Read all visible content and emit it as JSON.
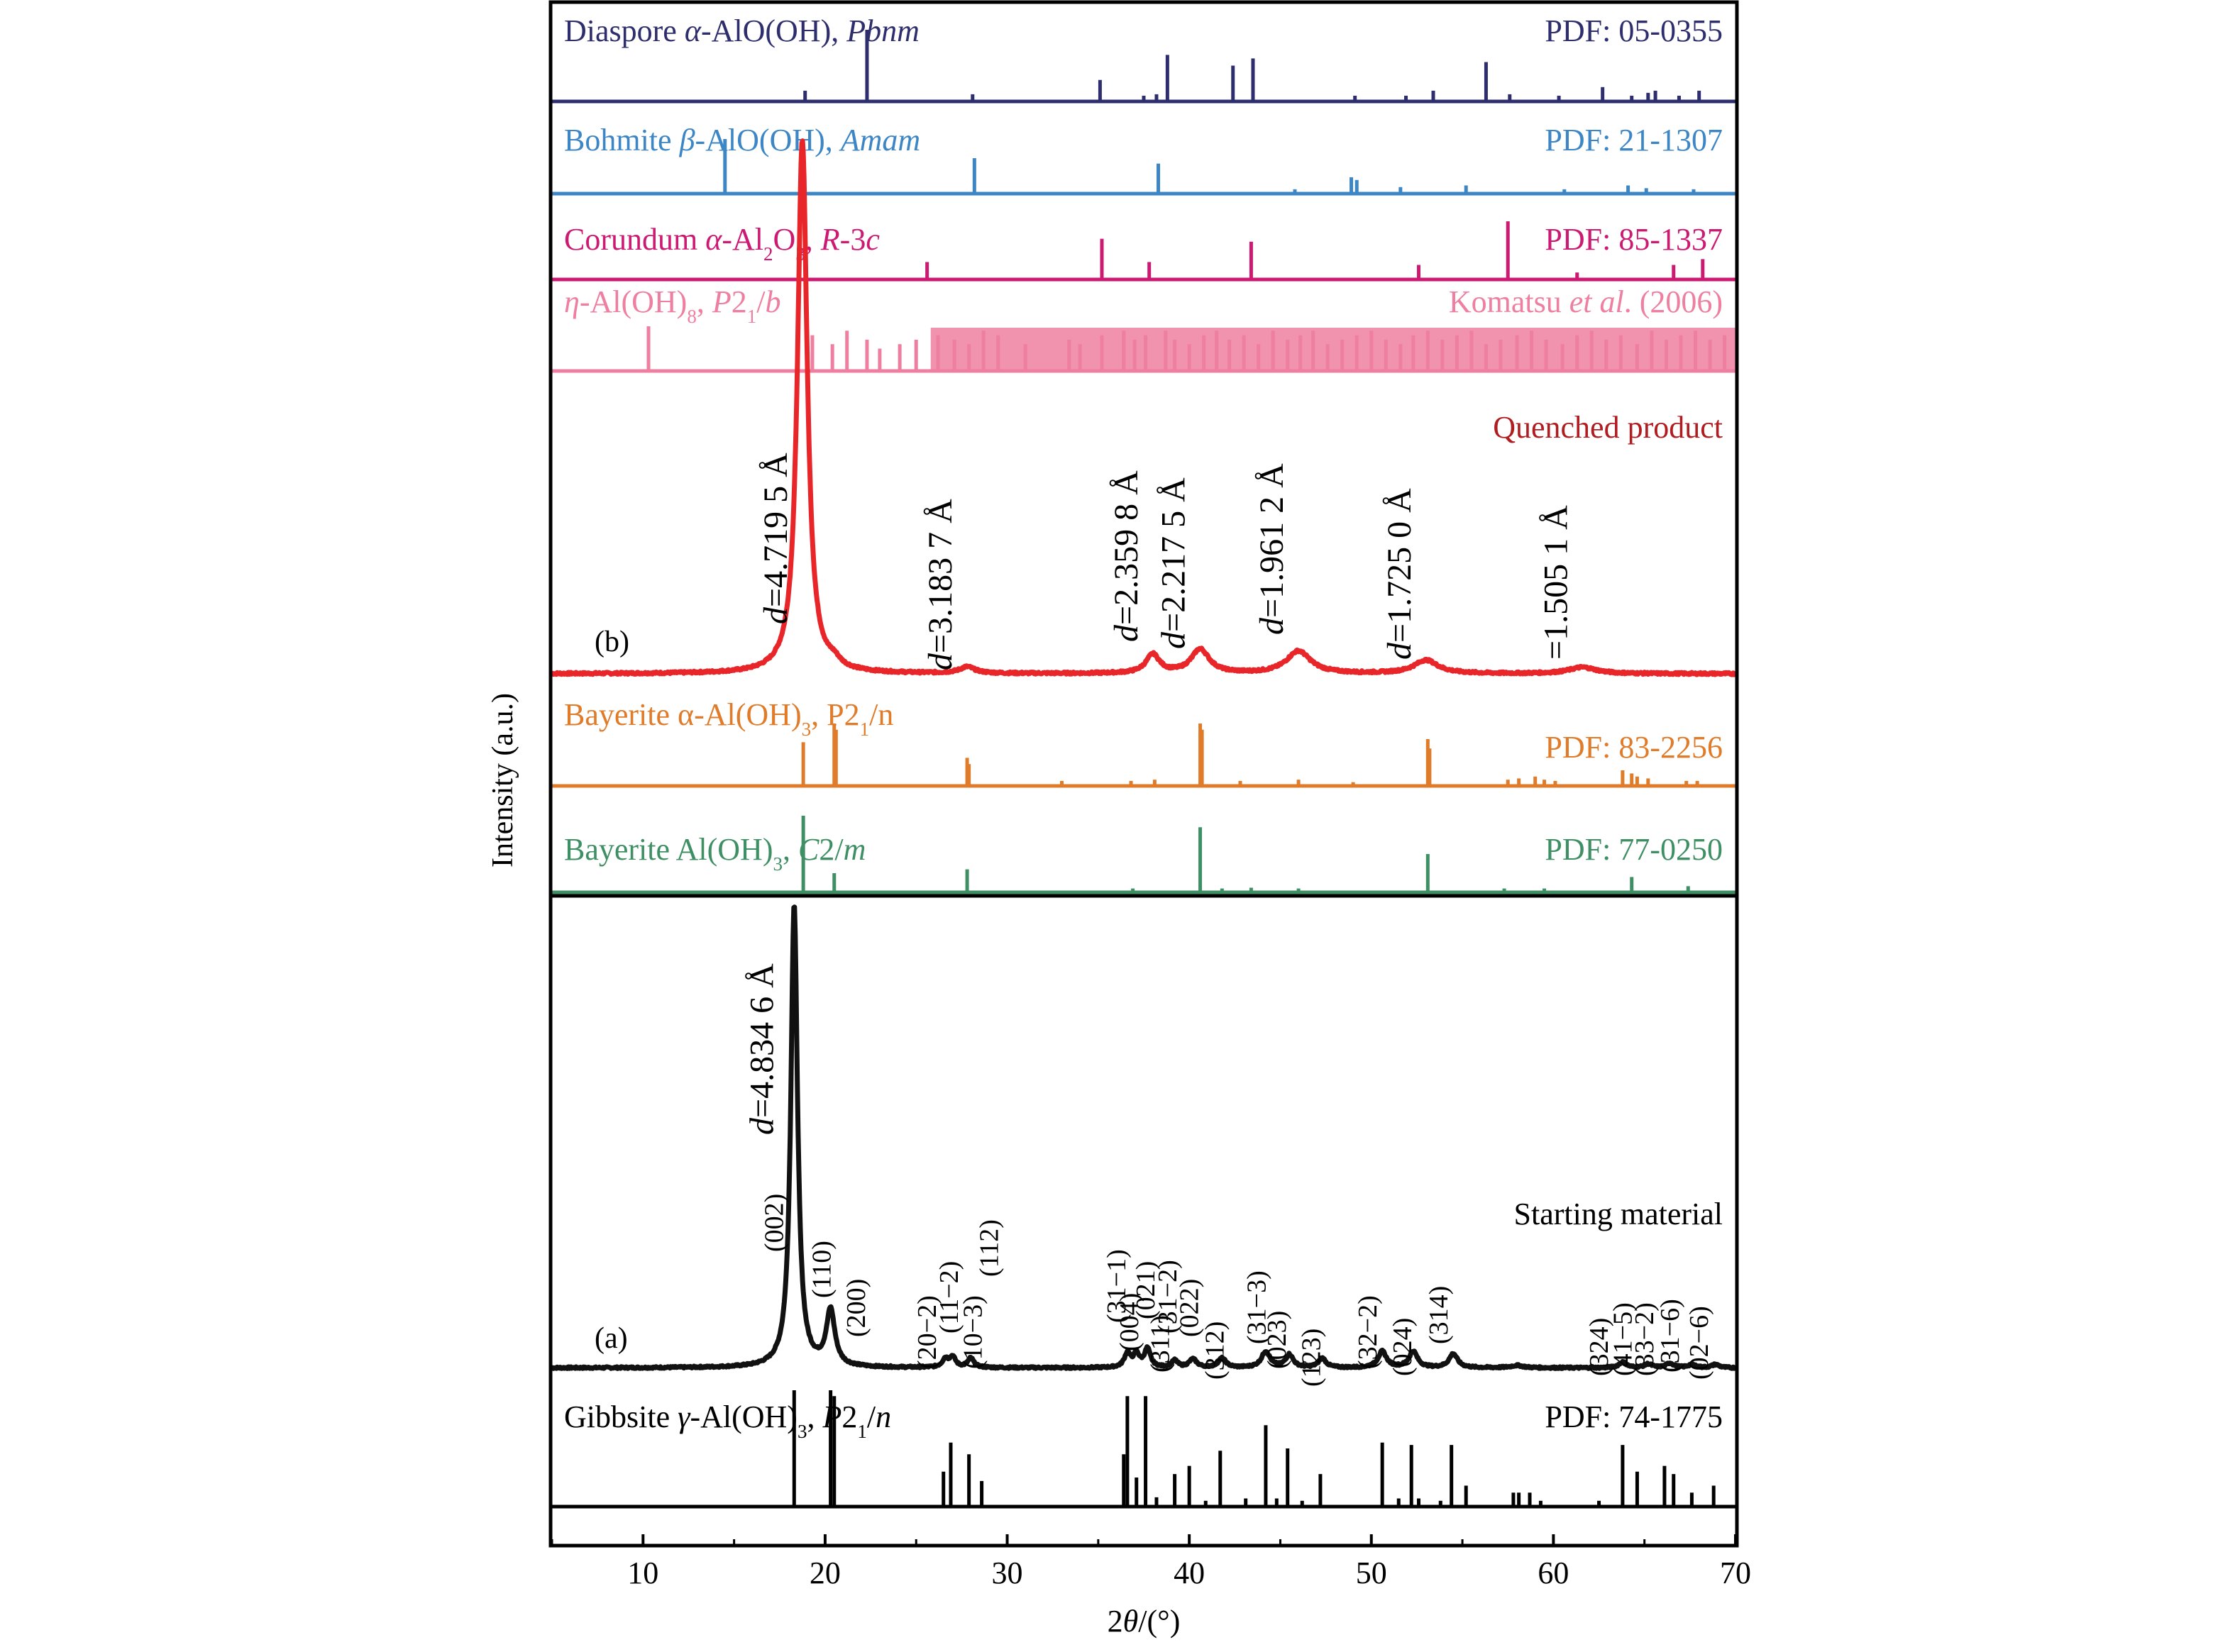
{
  "chart_data": {
    "type": "bar",
    "title": "",
    "xlabel": "2θ/(°)",
    "xlabel_parts": [
      "2",
      "θ",
      "/(°)"
    ],
    "ylabel": "Intensity (a.u.)",
    "xlim": [
      5,
      70
    ],
    "xticks": [
      10,
      20,
      30,
      40,
      50,
      60,
      70
    ],
    "x_tick_labels": [
      "10",
      "20",
      "30",
      "40",
      "50",
      "60",
      "70"
    ],
    "grid": false,
    "reference_patterns": [
      {
        "key": "diaspore",
        "label_parts": [
          [
            "Diaspore ",
            false
          ],
          [
            "α",
            true
          ],
          [
            "-AlO(OH), ",
            false
          ],
          [
            "Pbnm",
            true
          ]
        ],
        "pdf": "PDF: 05-0355",
        "color": "#2e2e6e",
        "x": [
          18.9,
          22.3,
          28.1,
          35.1,
          37.5,
          38.2,
          38.8,
          42.4,
          43.5,
          49.1,
          51.9,
          53.4,
          56.3,
          57.6,
          60.3,
          62.7,
          64.3,
          65.2,
          65.6,
          66.9,
          68.0
        ],
        "h": [
          0.15,
          1.0,
          0.1,
          0.3,
          0.08,
          0.1,
          0.65,
          0.5,
          0.6,
          0.08,
          0.08,
          0.15,
          0.55,
          0.1,
          0.08,
          0.2,
          0.08,
          0.12,
          0.15,
          0.08,
          0.15
        ]
      },
      {
        "key": "bohmite",
        "label_parts": [
          [
            "Bohmite ",
            false
          ],
          [
            "β",
            true
          ],
          [
            "-AlO(OH), ",
            false
          ],
          [
            "Amam",
            true
          ]
        ],
        "pdf": "PDF: 21-1307",
        "color": "#3d86c6",
        "x": [
          14.5,
          28.2,
          38.3,
          45.8,
          48.9,
          49.2,
          51.6,
          55.2,
          60.6,
          64.1,
          65.1,
          67.7
        ],
        "h": [
          1.0,
          0.65,
          0.55,
          0.08,
          0.3,
          0.25,
          0.12,
          0.15,
          0.08,
          0.15,
          0.1,
          0.08
        ]
      },
      {
        "key": "corundum",
        "label_parts": [
          [
            "Corundum ",
            false
          ],
          [
            "α",
            true
          ],
          [
            "-Al",
            false
          ],
          [
            "2",
            "sub"
          ],
          [
            "O",
            false
          ],
          [
            "3",
            "sub"
          ],
          [
            ", ",
            false
          ],
          [
            "R",
            true
          ],
          [
            "-3",
            false
          ],
          [
            "c",
            true
          ]
        ],
        "pdf": "PDF: 85-1337",
        "color": "#cc1a73",
        "x": [
          25.6,
          35.2,
          37.8,
          43.4,
          52.6,
          57.5,
          61.3,
          66.6,
          68.2
        ],
        "h": [
          0.3,
          0.7,
          0.3,
          0.65,
          0.25,
          1.0,
          0.12,
          0.25,
          0.35
        ]
      },
      {
        "key": "eta",
        "label_parts": [
          [
            "η",
            true
          ],
          [
            "-Al(OH)",
            false
          ],
          [
            "8",
            "sub"
          ],
          [
            ", ",
            false
          ],
          [
            "P",
            true
          ],
          [
            "2",
            false
          ],
          [
            "1",
            "sub"
          ],
          [
            "/",
            false
          ],
          [
            "b",
            true
          ]
        ],
        "pdf": "Komatsu et al. (2006)",
        "pdf_parts": [
          [
            "Komatsu ",
            false
          ],
          [
            "et al",
            true
          ],
          [
            ". (2006)",
            false
          ]
        ],
        "color": "#ee7fa0",
        "x": [
          10.3,
          18.5,
          19.3,
          20.4,
          21.2,
          22.3,
          23.0,
          24.1,
          25.0,
          26.2,
          27.1,
          27.9,
          28.7,
          29.5,
          31.0,
          33.4,
          34.0,
          35.2,
          36.4,
          37.0,
          37.6,
          38.7,
          39.2,
          40.0,
          40.8,
          41.5,
          42.2,
          43.0,
          43.8,
          44.6,
          45.4,
          46.1,
          46.8,
          47.6,
          48.4,
          49.2,
          50.0,
          50.8,
          51.6,
          52.3,
          53.1,
          53.9,
          54.7,
          55.5,
          56.3,
          57.1,
          58.0,
          58.8,
          59.6,
          60.5,
          61.3,
          62.1,
          62.9,
          63.7,
          64.6,
          65.4,
          66.2,
          67.0,
          67.8,
          68.6,
          69.4
        ],
        "h": [
          1.0,
          0.9,
          0.8,
          0.6,
          0.9,
          0.7,
          0.5,
          0.6,
          0.7,
          0.8,
          0.7,
          0.6,
          0.9,
          0.8,
          0.6,
          0.7,
          0.6,
          0.8,
          0.9,
          0.7,
          0.8,
          0.9,
          0.7,
          0.6,
          0.8,
          0.9,
          0.7,
          0.8,
          0.6,
          0.9,
          0.7,
          0.8,
          0.9,
          0.6,
          0.7,
          0.8,
          0.9,
          0.7,
          0.6,
          0.8,
          0.9,
          0.7,
          0.8,
          0.9,
          0.6,
          0.7,
          0.8,
          0.9,
          0.7,
          0.6,
          0.8,
          0.9,
          0.7,
          0.8,
          0.6,
          0.9,
          0.7,
          0.8,
          0.9,
          0.7,
          0.8
        ],
        "band": [
          [
            25.8,
            70
          ]
        ]
      },
      {
        "key": "bayerite_p21n",
        "label_parts": [
          [
            "Bayerite α-Al(OH)",
            false
          ],
          [
            "3",
            "sub"
          ],
          [
            ", P2",
            false
          ],
          [
            "1",
            "sub"
          ],
          [
            "/n",
            false
          ]
        ],
        "pdf": "PDF: 83-2256",
        "color": "#e07b2a",
        "x": [
          18.8,
          20.5,
          20.6,
          27.8,
          27.9,
          33.0,
          36.8,
          38.1,
          40.6,
          40.7,
          42.8,
          46.0,
          49.0,
          53.1,
          53.2,
          57.5,
          58.1,
          59.0,
          59.5,
          60.1,
          63.8,
          64.3,
          64.6,
          65.2,
          67.3,
          67.9
        ],
        "h": [
          0.7,
          1.0,
          0.9,
          0.45,
          0.35,
          0.08,
          0.08,
          0.1,
          1.0,
          0.9,
          0.08,
          0.1,
          0.06,
          0.75,
          0.6,
          0.1,
          0.12,
          0.15,
          0.1,
          0.08,
          0.25,
          0.2,
          0.15,
          0.12,
          0.08,
          0.08
        ]
      },
      {
        "key": "bayerite_c2m",
        "label_parts": [
          [
            "Bayerite Al(OH)",
            false
          ],
          [
            "3",
            "sub"
          ],
          [
            ", ",
            false
          ],
          [
            "C",
            true
          ],
          [
            "2/",
            false
          ],
          [
            "m",
            true
          ]
        ],
        "pdf": "PDF: 77-0250",
        "color": "#3f8f64",
        "x": [
          18.8,
          20.5,
          27.8,
          36.9,
          40.6,
          41.8,
          43.4,
          46.0,
          53.1,
          57.3,
          59.5,
          64.3,
          67.4
        ],
        "h": [
          1.0,
          0.25,
          0.3,
          0.05,
          0.85,
          0.05,
          0.06,
          0.05,
          0.5,
          0.05,
          0.05,
          0.2,
          0.08
        ]
      }
    ],
    "gibbsite_reference": {
      "label_parts": [
        [
          "Gibbsite ",
          false
        ],
        [
          "γ",
          true
        ],
        [
          "-Al(OH)",
          false
        ],
        [
          "3",
          "sub"
        ],
        [
          ", ",
          false
        ],
        [
          "P",
          true
        ],
        [
          "2",
          false
        ],
        [
          "1",
          "sub"
        ],
        [
          "/",
          false
        ],
        [
          "n",
          true
        ]
      ],
      "pdf": "PDF: 74-1775",
      "color": "#000000",
      "x": [
        18.3,
        20.3,
        20.5,
        26.5,
        26.9,
        27.9,
        28.6,
        36.4,
        36.6,
        37.1,
        37.6,
        38.2,
        39.2,
        40.0,
        40.9,
        41.7,
        43.1,
        44.2,
        44.8,
        45.4,
        46.2,
        47.2,
        50.6,
        51.5,
        52.2,
        52.6,
        53.8,
        54.4,
        55.2,
        57.8,
        58.1,
        58.7,
        59.3,
        62.5,
        63.8,
        64.6,
        66.1,
        66.6,
        67.6,
        68.8
      ],
      "h": [
        1.0,
        1.0,
        0.95,
        0.3,
        0.55,
        0.45,
        0.22,
        0.45,
        0.95,
        0.25,
        0.95,
        0.08,
        0.28,
        0.35,
        0.05,
        0.48,
        0.07,
        0.7,
        0.07,
        0.5,
        0.05,
        0.28,
        0.55,
        0.07,
        0.53,
        0.07,
        0.05,
        0.53,
        0.18,
        0.12,
        0.12,
        0.12,
        0.05,
        0.05,
        0.53,
        0.3,
        0.35,
        0.28,
        0.12,
        0.18
      ]
    },
    "series": [
      {
        "key": "quenched",
        "name": "Quenched product",
        "panel": "(b)",
        "color": "#e8262a",
        "baseline": 0.02,
        "peaks": [
          [
            18.75,
            1.0,
            0.32
          ],
          [
            20.5,
            0.012,
            0.4
          ],
          [
            27.8,
            0.012,
            0.5
          ],
          [
            38.0,
            0.035,
            0.45
          ],
          [
            40.6,
            0.045,
            0.6
          ],
          [
            46.0,
            0.042,
            0.8
          ],
          [
            53.0,
            0.025,
            0.8
          ],
          [
            61.6,
            0.012,
            0.9
          ]
        ]
      },
      {
        "key": "starting",
        "name": "Starting material",
        "panel": "(a)",
        "color": "#111111",
        "baseline": 0.01,
        "peaks": [
          [
            18.3,
            1.0,
            0.22
          ],
          [
            20.3,
            0.12,
            0.28
          ],
          [
            26.6,
            0.018,
            0.2
          ],
          [
            27.0,
            0.022,
            0.2
          ],
          [
            28.0,
            0.02,
            0.2
          ],
          [
            36.6,
            0.03,
            0.2
          ],
          [
            37.1,
            0.028,
            0.2
          ],
          [
            37.7,
            0.04,
            0.2
          ],
          [
            39.2,
            0.015,
            0.2
          ],
          [
            40.2,
            0.018,
            0.25
          ],
          [
            41.8,
            0.02,
            0.25
          ],
          [
            44.2,
            0.035,
            0.28
          ],
          [
            45.5,
            0.028,
            0.25
          ],
          [
            47.3,
            0.02,
            0.25
          ],
          [
            50.6,
            0.035,
            0.28
          ],
          [
            52.3,
            0.035,
            0.28
          ],
          [
            54.5,
            0.03,
            0.28
          ],
          [
            58.0,
            0.005,
            0.4
          ],
          [
            63.8,
            0.012,
            0.25
          ],
          [
            65.2,
            0.008,
            0.25
          ],
          [
            66.4,
            0.01,
            0.25
          ],
          [
            67.6,
            0.007,
            0.25
          ],
          [
            68.9,
            0.007,
            0.25
          ]
        ]
      }
    ],
    "d_spacing_annotations": [
      {
        "x": 18.75,
        "label": "=4.719 5 Å",
        "italic_d": true
      },
      {
        "x": 27.8,
        "label": "=3.183 7 Å",
        "italic_d": true
      },
      {
        "x": 38.0,
        "label": "=2.359 8 Å",
        "italic_d": true
      },
      {
        "x": 40.6,
        "label": "=2.217 5 Å",
        "italic_d": true
      },
      {
        "x": 46.0,
        "label": "=1.961 2 Å",
        "italic_d": true
      },
      {
        "x": 53.0,
        "label": "=1.725 0 Å",
        "italic_d": true
      },
      {
        "x": 61.6,
        "label": "=1.505 1 Å",
        "italic_d": false
      }
    ],
    "starting_d_annotation": {
      "x": 18.3,
      "label": "=4.834 6 Å",
      "italic_d": true
    },
    "hkl_annotations": [
      {
        "x": 18.0,
        "label": "(002)"
      },
      {
        "x": 20.6,
        "label": "(110)"
      },
      {
        "x": 22.5,
        "label": "(200)"
      },
      {
        "x": 26.4,
        "label": "(20−2)"
      },
      {
        "x": 27.6,
        "label": "(11−2)"
      },
      {
        "x": 28.9,
        "label": "(10−3)"
      },
      {
        "x": 29.8,
        "label": "(112)"
      },
      {
        "x": 36.8,
        "label": "(31−1)"
      },
      {
        "x": 37.5,
        "label": "(004)"
      },
      {
        "x": 38.4,
        "label": "(021)"
      },
      {
        "x": 39.2,
        "label": "(311)"
      },
      {
        "x": 39.6,
        "label": "(31−2)"
      },
      {
        "x": 40.8,
        "label": "(022)"
      },
      {
        "x": 42.2,
        "label": "(312)"
      },
      {
        "x": 44.5,
        "label": "(31−3)"
      },
      {
        "x": 45.6,
        "label": "(023)"
      },
      {
        "x": 47.5,
        "label": "(123)"
      },
      {
        "x": 50.6,
        "label": "(32−2)"
      },
      {
        "x": 52.5,
        "label": "(024)"
      },
      {
        "x": 54.5,
        "label": "(314)"
      },
      {
        "x": 63.3,
        "label": "(324)"
      },
      {
        "x": 64.6,
        "label": "(41−5)"
      },
      {
        "x": 65.8,
        "label": "(33−2)"
      },
      {
        "x": 67.2,
        "label": "(31−6)"
      },
      {
        "x": 68.8,
        "label": "(02−6)"
      }
    ]
  }
}
